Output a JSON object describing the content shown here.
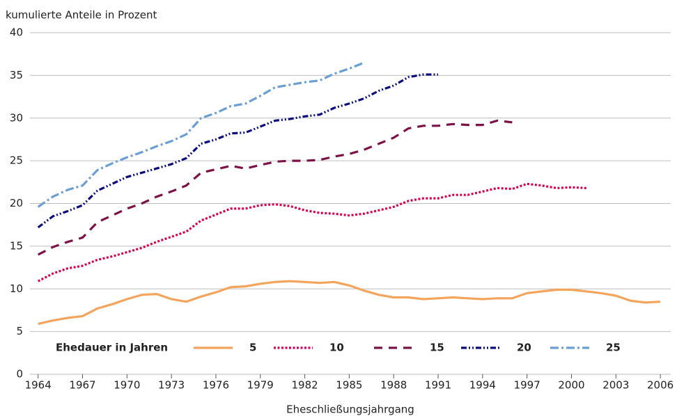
{
  "chart_data": {
    "type": "line",
    "y_label": "kumulierte Anteile in Prozent",
    "x_label": "Eheschließungsjahrgang",
    "legend_title": "Ehedauer in Jahren",
    "x": [
      1964,
      1965,
      1966,
      1967,
      1968,
      1969,
      1970,
      1971,
      1972,
      1973,
      1974,
      1975,
      1976,
      1977,
      1978,
      1979,
      1980,
      1981,
      1982,
      1983,
      1984,
      1985,
      1986,
      1987,
      1988,
      1989,
      1990,
      1991,
      1992,
      1993,
      1994,
      1995,
      1996,
      1997,
      1998,
      1999,
      2000,
      2001,
      2002,
      2003,
      2004,
      2005,
      2006
    ],
    "series": [
      {
        "name": "5",
        "color": "#f5a45c",
        "values": [
          5.9,
          6.3,
          6.6,
          6.8,
          7.7,
          8.2,
          8.8,
          9.3,
          9.4,
          8.8,
          8.5,
          9.1,
          9.6,
          10.2,
          10.3,
          10.6,
          10.8,
          10.9,
          10.8,
          10.7,
          10.8,
          10.4,
          9.8,
          9.3,
          9.0,
          9.0,
          8.8,
          8.9,
          9.0,
          8.9,
          8.8,
          8.9,
          8.9,
          9.5,
          9.7,
          9.9,
          9.9,
          9.7,
          9.5,
          9.2,
          8.6,
          8.4,
          8.5
        ]
      },
      {
        "name": "10",
        "color": "#d6004f",
        "values": [
          10.9,
          11.8,
          12.4,
          12.7,
          13.4,
          13.8,
          14.3,
          14.8,
          15.5,
          16.1,
          16.7,
          18.0,
          18.7,
          19.4,
          19.4,
          19.8,
          19.9,
          19.7,
          19.2,
          18.9,
          18.8,
          18.6,
          18.8,
          19.2,
          19.6,
          20.3,
          20.6,
          20.6,
          21.0,
          21.0,
          21.4,
          21.8,
          21.7,
          22.3,
          22.1,
          21.8,
          21.9,
          21.8,
          null,
          null,
          null,
          null,
          null
        ]
      },
      {
        "name": "15",
        "color": "#7d1247",
        "values": [
          14.0,
          14.9,
          15.5,
          16.0,
          17.8,
          18.6,
          19.4,
          20.0,
          20.8,
          21.4,
          22.1,
          23.6,
          24.0,
          24.4,
          24.1,
          24.5,
          24.9,
          25.0,
          25.0,
          25.1,
          25.5,
          25.8,
          26.3,
          27.0,
          27.7,
          28.8,
          29.1,
          29.1,
          29.3,
          29.2,
          29.2,
          29.7,
          29.5,
          null,
          null,
          null,
          null,
          null,
          null,
          null,
          null,
          null,
          null
        ]
      },
      {
        "name": "20",
        "color": "#0c0c7c",
        "values": [
          17.2,
          18.5,
          19.1,
          19.8,
          21.5,
          22.3,
          23.1,
          23.6,
          24.1,
          24.6,
          25.3,
          27.0,
          27.5,
          28.2,
          28.3,
          29.0,
          29.7,
          29.9,
          30.2,
          30.4,
          31.2,
          31.7,
          32.3,
          33.2,
          33.8,
          34.8,
          35.1,
          35.1,
          null,
          null,
          null,
          null,
          null,
          null,
          null,
          null,
          null,
          null,
          null,
          null,
          null,
          null,
          null
        ]
      },
      {
        "name": "25",
        "color": "#6b9fd3",
        "values": [
          19.6,
          20.8,
          21.6,
          22.1,
          23.9,
          24.7,
          25.4,
          26.0,
          26.7,
          27.3,
          28.1,
          30.0,
          30.6,
          31.4,
          31.7,
          32.6,
          33.6,
          33.9,
          34.2,
          34.4,
          35.2,
          35.8,
          36.5,
          null,
          null,
          null,
          null,
          null,
          null,
          null,
          null,
          null,
          null,
          null,
          null,
          null,
          null,
          null,
          null,
          null,
          null,
          null,
          null
        ]
      }
    ],
    "xlim": [
      1963.45,
      2006.7
    ],
    "xticks": [
      1964,
      1967,
      1970,
      1973,
      1976,
      1979,
      1982,
      1985,
      1988,
      1991,
      1994,
      1997,
      2000,
      2003,
      2006
    ],
    "ylim": [
      0,
      40
    ],
    "yticks": [
      0,
      5,
      10,
      15,
      20,
      25,
      30,
      35,
      40
    ],
    "grid": true
  }
}
